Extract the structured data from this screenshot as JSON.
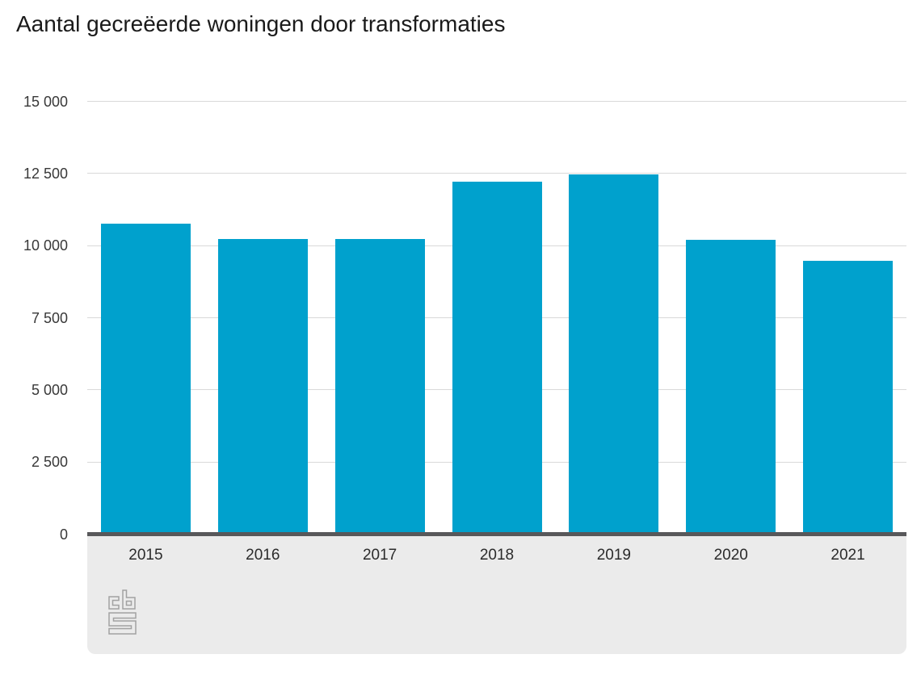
{
  "chart_data": {
    "type": "bar",
    "title": "Aantal gecreëerde woningen door transformaties",
    "categories": [
      "2015",
      "2016",
      "2017",
      "2018",
      "2019",
      "2020",
      "2021"
    ],
    "values": [
      10770,
      10240,
      10240,
      12220,
      12480,
      10190,
      9480
    ],
    "xlabel": "",
    "ylabel": "",
    "ylim": [
      0,
      15000
    ],
    "y_ticks": [
      {
        "value": 15000,
        "label": "15 000"
      },
      {
        "value": 12500,
        "label": "12 500"
      },
      {
        "value": 10000,
        "label": "10 000"
      },
      {
        "value": 7500,
        "label": "7 500"
      },
      {
        "value": 5000,
        "label": "5 000"
      },
      {
        "value": 2500,
        "label": "2 500"
      },
      {
        "value": 0,
        "label": "0"
      }
    ],
    "grid": true,
    "legend": false,
    "bar_color": "#00a1cd"
  },
  "footer": {
    "logo_icon": "cbs-logo-icon"
  }
}
